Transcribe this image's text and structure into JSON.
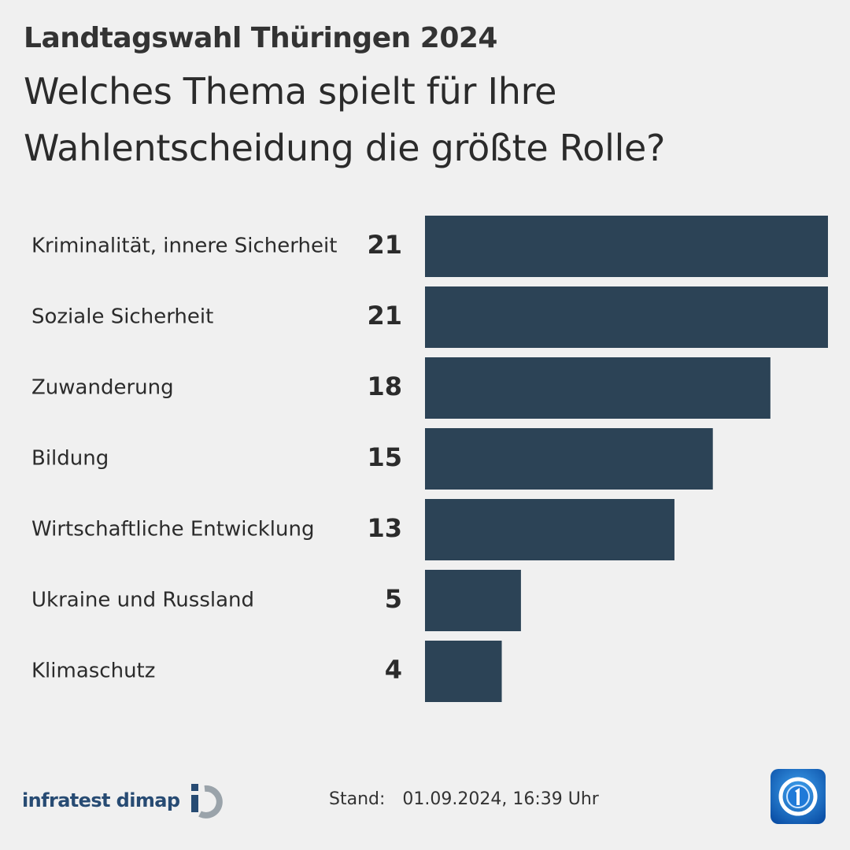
{
  "header": {
    "kicker": "Landtagswahl Thüringen 2024",
    "headline_line1": "Welches Thema spielt für Ihre",
    "headline_line2": "Wahlentscheidung die größte Rolle?"
  },
  "chart_data": {
    "type": "bar",
    "orientation": "horizontal",
    "categories": [
      "Kriminalität, innere Sicherheit",
      "Soziale Sicherheit",
      "Zuwanderung",
      "Bildung",
      "Wirtschaftliche Entwicklung",
      "Ukraine und Russland",
      "Klimaschutz"
    ],
    "values": [
      21,
      21,
      18,
      15,
      13,
      5,
      4
    ],
    "data_labels": [
      "21",
      "21",
      "18",
      "15",
      "13",
      "5",
      "4"
    ],
    "xlim": [
      0,
      21
    ],
    "grid": false,
    "title": "Welches Thema spielt für Ihre Wahlentscheidung die größte Rolle?",
    "bar_color": "#2c4356"
  },
  "footer": {
    "source": "infratest dimap",
    "stand_label": "Stand:",
    "stand_value": "01.09.2024, 16:39 Uhr",
    "brand_icon": "tagesschau-one-icon"
  },
  "colors": {
    "background": "#f0f0f0",
    "bar": "#2c4356",
    "source_logo": "#274b73",
    "brand_logo": "#1a6fd1"
  }
}
